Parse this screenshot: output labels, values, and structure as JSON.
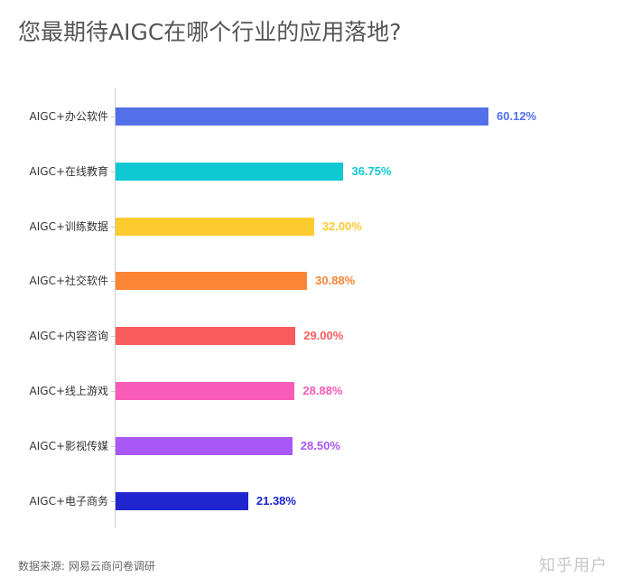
{
  "title": "您最期待AIGC在哪个行业的应用落地?",
  "source": "数据来源: 网易云商问卷调研",
  "watermark": "知乎用户",
  "chart_data": {
    "type": "bar",
    "orientation": "horizontal",
    "title": "您最期待AIGC在哪个行业的应用落地?",
    "xlabel": "",
    "ylabel": "",
    "xlim": [
      0,
      65
    ],
    "grid": false,
    "legend": "none",
    "categories": [
      "AIGC+办公软件",
      "AIGC+在线教育",
      "AIGC+训练数据",
      "AIGC+社交软件",
      "AIGC+内容咨询",
      "AIGC+线上游戏",
      "AIGC+影视传媒",
      "AIGC+电子商务"
    ],
    "values": [
      60.12,
      36.75,
      32.0,
      30.88,
      29.0,
      28.88,
      28.5,
      21.38
    ],
    "labels": [
      "60.12%",
      "36.75%",
      "32.00%",
      "30.88%",
      "29.00%",
      "28.88%",
      "28.50%",
      "21.38%"
    ],
    "colors": [
      "#5470e8",
      "#0fc8d2",
      "#fccb30",
      "#fb8534",
      "#f85c5c",
      "#f95bb9",
      "#a957f7",
      "#1f25cf"
    ],
    "annotations": [
      "数据来源: 网易云商问卷调研"
    ]
  }
}
